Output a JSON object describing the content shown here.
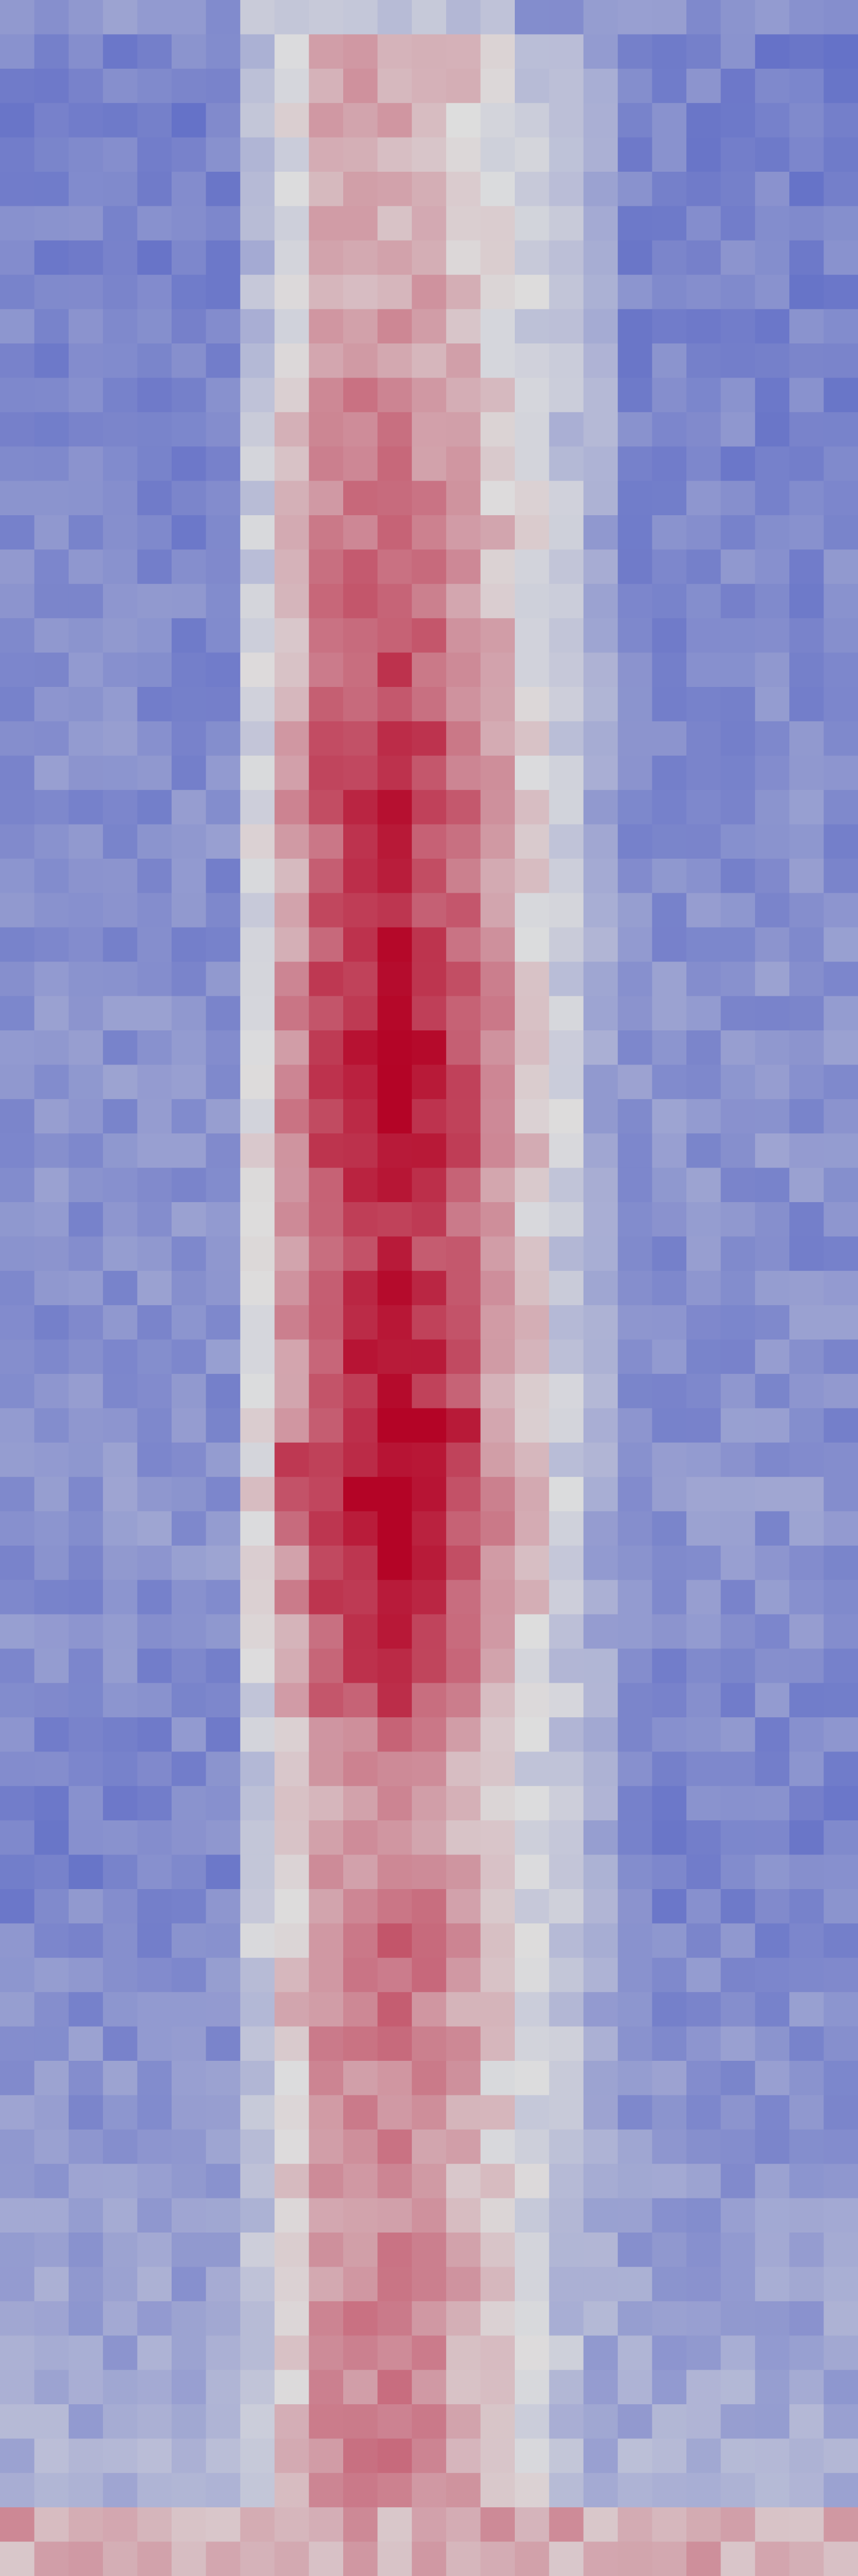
{
  "chart_data": {
    "type": "heatmap",
    "title": "",
    "xlabel": "",
    "ylabel": "",
    "colormap": "coolwarm",
    "value_range": [
      0,
      1
    ],
    "rows": 75,
    "cols": 25,
    "column_profile": [
      0.3,
      0.3,
      0.3,
      0.3,
      0.3,
      0.3,
      0.3,
      0.38,
      0.5,
      0.6,
      0.62,
      0.62,
      0.6,
      0.56,
      0.5,
      0.44,
      0.38,
      0.32,
      0.3,
      0.3,
      0.3,
      0.3,
      0.3,
      0.3,
      0.3
    ],
    "row_intensity": [
      0.0,
      0.2,
      0.2,
      0.2,
      0.2,
      0.2,
      0.2,
      0.2,
      0.25,
      0.3,
      0.35,
      0.45,
      0.5,
      0.5,
      0.55,
      0.6,
      0.65,
      0.7,
      0.8,
      0.85,
      0.9,
      1.0,
      1.05,
      1.05,
      1.0,
      1.0,
      1.05,
      1.1,
      1.2,
      1.25,
      1.35,
      1.35,
      1.4,
      1.3,
      1.2,
      1.05,
      1.0,
      1.1,
      1.15,
      1.2,
      1.1,
      1.05,
      1.3,
      1.5,
      1.4,
      1.3,
      1.2,
      1.05,
      0.95,
      0.85,
      0.6,
      0.45,
      0.4,
      0.4,
      0.4,
      0.55,
      0.6,
      0.6,
      0.6,
      0.55,
      0.45,
      0.4,
      0.4,
      0.4,
      0.4,
      0.45,
      0.45,
      0.45,
      0.45,
      0.45,
      0.5,
      0.55,
      0.55,
      0.75,
      0.7
    ],
    "accent_cells": [
      [
        41,
        11,
        1.0
      ],
      [
        41,
        12,
        1.0
      ],
      [
        41,
        13,
        0.95
      ],
      [
        41,
        10,
        0.9
      ],
      [
        42,
        8,
        0.88
      ],
      [
        42,
        9,
        0.86
      ],
      [
        43,
        8,
        0.82
      ]
    ],
    "bottom_band_rows": [
      73,
      74
    ],
    "colors": {
      "cold": "#3b4cc0",
      "neutral": "#dddddd",
      "hot": "#b40426"
    }
  }
}
